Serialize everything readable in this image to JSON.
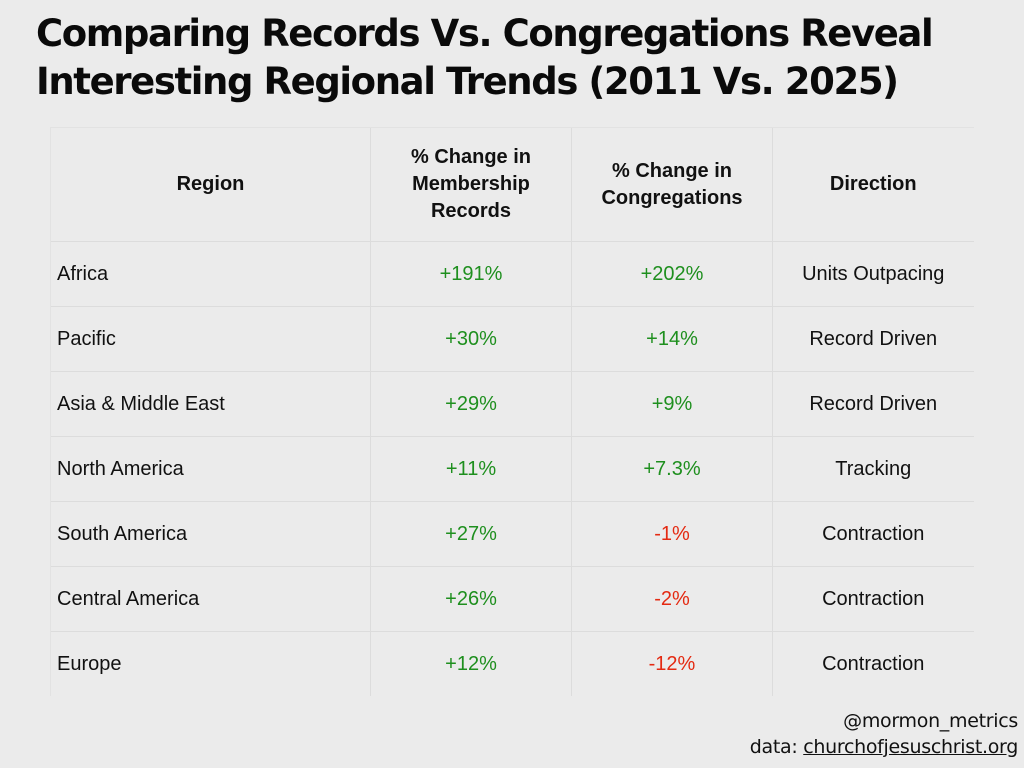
{
  "title": {
    "line1": "Comparing Records Vs. Congregations Reveal",
    "line2": "Interesting Regional Trends (2011 Vs. 2025)"
  },
  "table": {
    "headers": [
      "Region",
      "% Change in Membership Records",
      "% Change in Congregations",
      "Direction"
    ],
    "rows": [
      {
        "region": "Africa",
        "records": "+191%",
        "congregations": "+202%",
        "direction": "Units Outpacing"
      },
      {
        "region": "Pacific",
        "records": "+30%",
        "congregations": "+14%",
        "direction": "Record Driven"
      },
      {
        "region": "Asia & Middle East",
        "records": "+29%",
        "congregations": "+9%",
        "direction": "Record Driven"
      },
      {
        "region": "North America",
        "records": "+11%",
        "congregations": "+7.3%",
        "direction": "Tracking"
      },
      {
        "region": "South America",
        "records": "+27%",
        "congregations": "-1%",
        "direction": "Contraction"
      },
      {
        "region": "Central America",
        "records": "+26%",
        "congregations": "-2%",
        "direction": "Contraction"
      },
      {
        "region": "Europe",
        "records": "+12%",
        "congregations": "-12%",
        "direction": "Contraction"
      }
    ]
  },
  "chart_data": {
    "type": "table",
    "title": "Comparing Records Vs. Congregations Reveal Interesting Regional Trends (2011 Vs. 2025)",
    "columns": [
      "Region",
      "% Change in Membership Records",
      "% Change in Congregations",
      "Direction"
    ],
    "categories": [
      "Africa",
      "Pacific",
      "Asia & Middle East",
      "North America",
      "South America",
      "Central America",
      "Europe"
    ],
    "series": [
      {
        "name": "% Change in Membership Records",
        "values": [
          191,
          30,
          29,
          11,
          27,
          26,
          12
        ]
      },
      {
        "name": "% Change in Congregations",
        "values": [
          202,
          14,
          9,
          7.3,
          -1,
          -2,
          -12
        ]
      }
    ],
    "direction": [
      "Units Outpacing",
      "Record Driven",
      "Record Driven",
      "Tracking",
      "Contraction",
      "Contraction",
      "Contraction"
    ]
  },
  "colors": {
    "positive": "#1e8f1e",
    "negative": "#e42a12",
    "background": "#ebebeb"
  },
  "footer": {
    "handle": "@mormon_metrics",
    "source_prefix": "data: ",
    "source_link": "churchofjesuschrist.org"
  }
}
